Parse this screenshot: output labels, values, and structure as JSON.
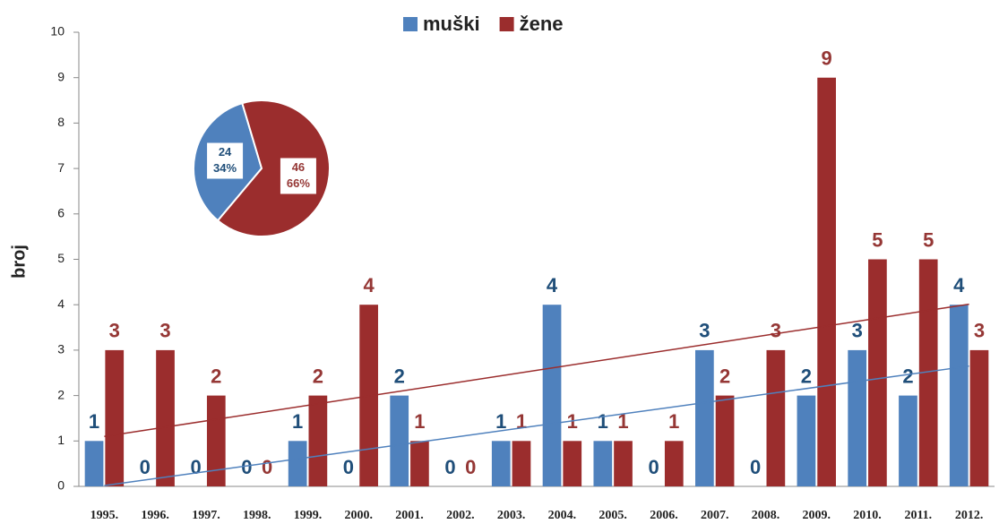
{
  "chart_data": [
    {
      "type": "bar",
      "y_label": "broj",
      "categories": [
        "1995.",
        "1996.",
        "1997.",
        "1998.",
        "1999.",
        "2000.",
        "2001.",
        "2002.",
        "2003.",
        "2004.",
        "2005.",
        "2006.",
        "2007.",
        "2008.",
        "2009.",
        "2010.",
        "2011.",
        "2012."
      ],
      "series": [
        {
          "name": "muški",
          "color": "#4f81bd",
          "label_color": "#1f4e79",
          "values": [
            1,
            0,
            0,
            0,
            1,
            0,
            2,
            0,
            1,
            4,
            1,
            0,
            3,
            0,
            2,
            3,
            2,
            4
          ]
        },
        {
          "name": "žene",
          "color": "#9b2d2d",
          "label_color": "#953735",
          "values": [
            3,
            3,
            2,
            0,
            2,
            4,
            1,
            0,
            1,
            1,
            1,
            1,
            2,
            3,
            9,
            5,
            5,
            3
          ]
        }
      ],
      "ylim": [
        0,
        10
      ],
      "yticks": [
        0,
        1,
        2,
        3,
        4,
        5,
        6,
        7,
        8,
        9,
        10
      ],
      "grid": false,
      "trendline": true,
      "legend": "top"
    },
    {
      "type": "pie",
      "values": [
        24,
        46
      ],
      "percent_labels": [
        "34%",
        "66%"
      ],
      "colors": [
        "#4f81bd",
        "#9b2d2d"
      ],
      "label_colors": [
        "#1f4e79",
        "#953735"
      ]
    }
  ]
}
